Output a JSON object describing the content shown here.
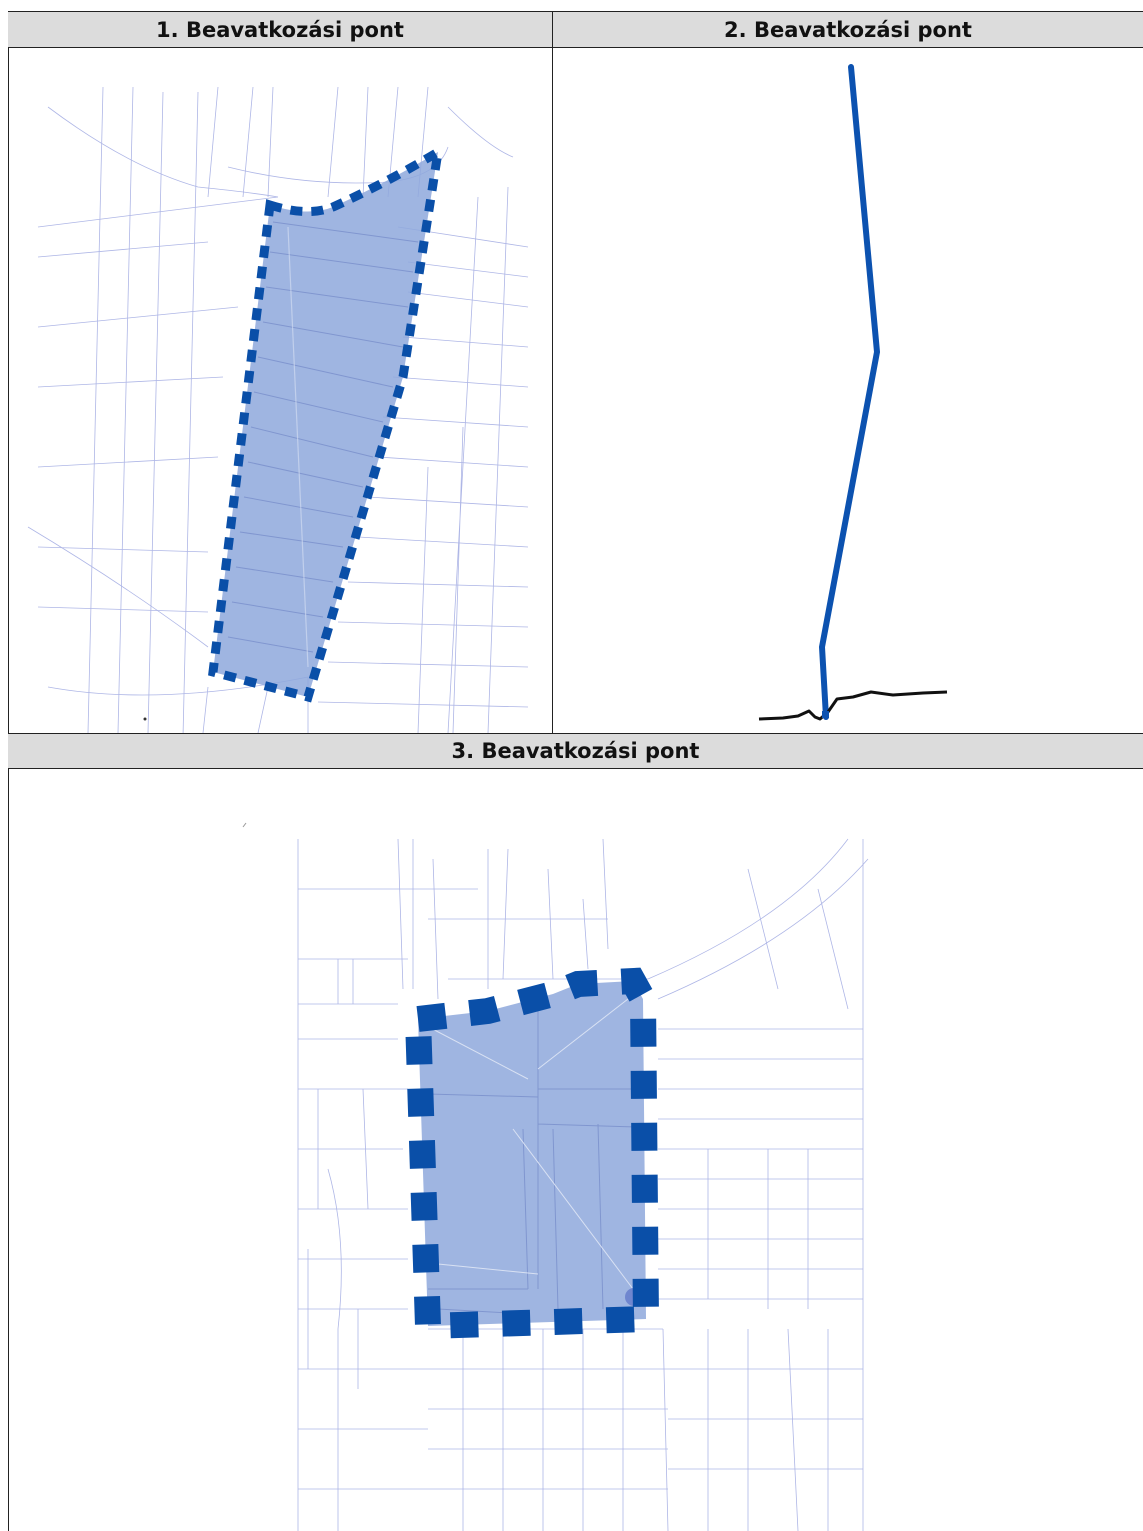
{
  "table": {
    "headers": [
      "1. Beavatkozási pont",
      "2. Beavatkozási pont",
      "3. Beavatkozási pont"
    ]
  },
  "map_style": {
    "parcel_line_color": "#aeb6e6",
    "area_fill_color": "#8ea8dc",
    "boundary_color": "#0a4fa8",
    "pipeline_color": "#0c52b0",
    "ground_line_color": "#111111"
  }
}
